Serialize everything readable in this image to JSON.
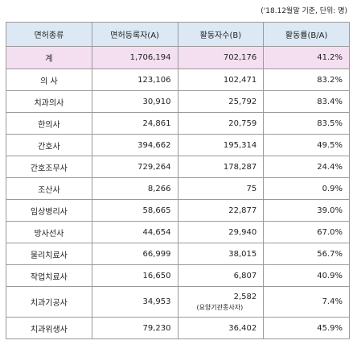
{
  "note": "('18.12월말 기준, 단위: 명)",
  "table": {
    "headers": [
      "면허종류",
      "면허등록자(A)",
      "활동자수(B)",
      "활동률(B/A)"
    ],
    "rows": [
      {
        "name": "계",
        "registered": "1,706,194",
        "active": "702,176",
        "rate": "41.2%"
      },
      {
        "name": "의 사",
        "registered": "123,106",
        "active": "102,471",
        "rate": "83.2%"
      },
      {
        "name": "치과의사",
        "registered": "30,910",
        "active": "25,792",
        "rate": "83.4%"
      },
      {
        "name": "한의사",
        "registered": "24,861",
        "active": "20,759",
        "rate": "83.5%"
      },
      {
        "name": "간호사",
        "registered": "394,662",
        "active": "195,314",
        "rate": "49.5%"
      },
      {
        "name": "간호조무사",
        "registered": "729,264",
        "active": "178,287",
        "rate": "24.4%"
      },
      {
        "name": "조산사",
        "registered": "8,266",
        "active": "75",
        "rate": "0.9%"
      },
      {
        "name": "임상병리사",
        "registered": "58,665",
        "active": "22,877",
        "rate": "39.0%"
      },
      {
        "name": "방사선사",
        "registered": "44,654",
        "active": "29,940",
        "rate": "67.0%"
      },
      {
        "name": "물리치료사",
        "registered": "66,999",
        "active": "38,015",
        "rate": "56.7%"
      },
      {
        "name": "작업치료사",
        "registered": "16,650",
        "active": "6,807",
        "rate": "40.9%"
      },
      {
        "name": "치과기공사",
        "registered": "34,953",
        "active": "2,582",
        "active_note": "(요양기관종사자)",
        "rate": "7.4%"
      },
      {
        "name": "치과위생사",
        "registered": "79,230",
        "active": "36,402",
        "rate": "45.9%"
      }
    ]
  }
}
